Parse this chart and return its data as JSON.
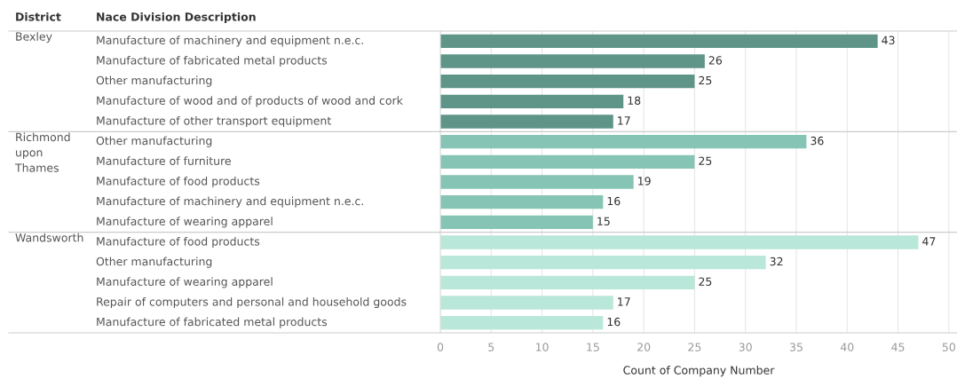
{
  "chart_data": {
    "type": "bar",
    "orientation": "horizontal",
    "xlabel": "Count of Company Number",
    "annotations": [
      "District",
      "Nace Division Description",
      "Bexley",
      "Richmond upon Thames",
      "Wandsworth"
    ],
    "categories": [
      "Manufacture of machinery and equipment n.e.c.",
      "Manufacture of fabricated metal products",
      "Other manufacturing",
      "Manufacture of wood and of products of wood and cork",
      "Manufacture of other transport equipment",
      "Other manufacturing",
      "Manufacture of furniture",
      "Manufacture of food products",
      "Manufacture of machinery and equipment n.e.c.",
      "Manufacture of wearing apparel",
      "Manufacture of food products",
      "Other manufacturing",
      "Manufacture of wearing apparel",
      "Repair of computers and personal and household goods",
      "Manufacture of fabricated metal products"
    ],
    "values": [
      43,
      26,
      25,
      18,
      17,
      36,
      25,
      19,
      16,
      15,
      47,
      32,
      25,
      17,
      16
    ],
    "colors": [
      "#5f9588",
      "#5f9588",
      "#5f9588",
      "#5f9588",
      "#5f9588",
      "#86c5b5",
      "#86c5b5",
      "#86c5b5",
      "#86c5b5",
      "#86c5b5",
      "#b9e7d9",
      "#b9e7d9",
      "#b9e7d9",
      "#b9e7d9",
      "#b9e7d9"
    ],
    "xlim": [
      0,
      50.8
    ],
    "xticks": [
      0,
      5,
      10,
      15,
      20,
      25,
      30,
      35,
      40,
      45,
      50
    ],
    "grid": "x",
    "data_labels": true
  }
}
